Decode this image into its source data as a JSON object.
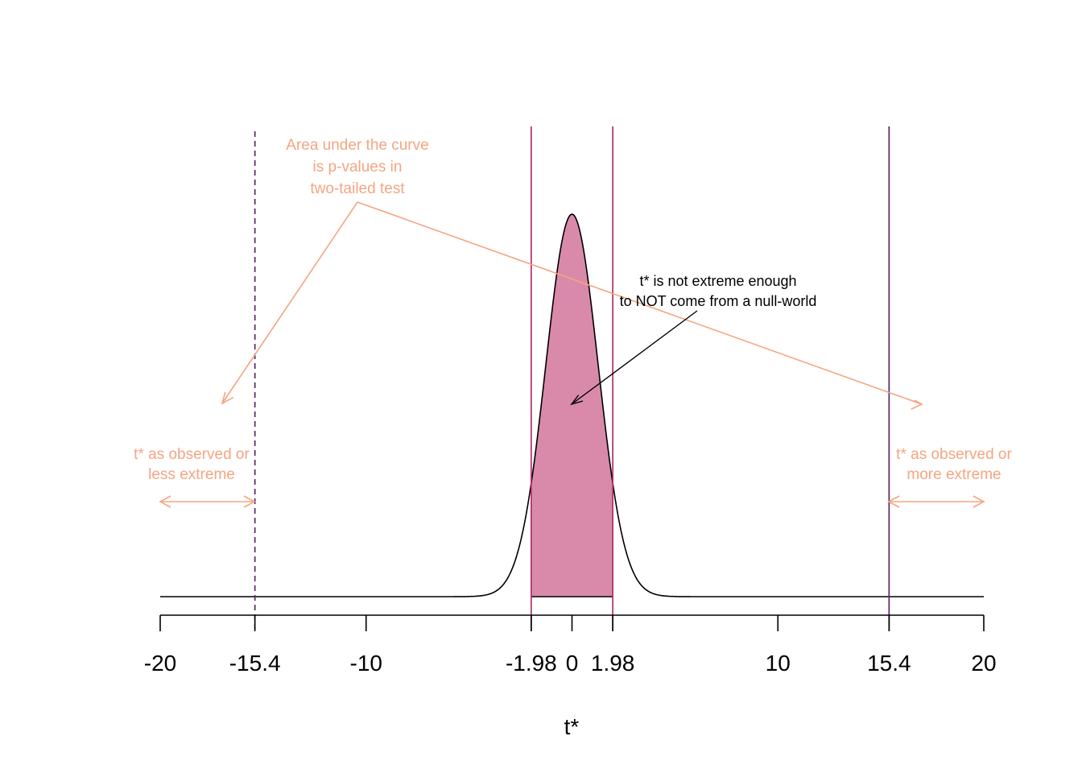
{
  "chart_data": {
    "type": "area",
    "distribution": "t (null world)",
    "xlabel": "t*",
    "ylabel": "",
    "xlim": [
      -20,
      20
    ],
    "x_ticks": [
      -20,
      -15.4,
      -10,
      -1.98,
      0,
      1.98,
      10,
      15.4,
      20
    ],
    "x_tick_labels": [
      "-20",
      "-15.4",
      "-10",
      "-1.98",
      "0",
      "1.98",
      "10",
      "15.4",
      "20"
    ],
    "grid": false,
    "shaded_region": {
      "from": -1.98,
      "to": 1.98,
      "color": "#d98aaa"
    },
    "vertical_lines": [
      {
        "name": "critical-lower",
        "x": -1.98,
        "style": "solid",
        "color": "#b0306a"
      },
      {
        "name": "critical-upper",
        "x": 1.98,
        "style": "solid",
        "color": "#b0306a"
      },
      {
        "name": "observed-lower",
        "x": -15.4,
        "style": "dashed",
        "color": "#5a2566"
      },
      {
        "name": "observed-upper",
        "x": 15.4,
        "style": "solid",
        "color": "#5a2566"
      }
    ],
    "annotations": {
      "p_value_note": [
        "Area under the curve",
        "is p-values in",
        "two-tailed test"
      ],
      "null_world_note": [
        "t* is not extreme enough",
        "to NOT come from a null-world"
      ],
      "left_region": [
        "t* as observed or",
        "less extreme"
      ],
      "right_region": [
        "t* as observed or",
        "more extreme"
      ]
    },
    "colors": {
      "annotation": "#f4a582",
      "curve": "#000000",
      "fill": "#d98aaa",
      "critical_line": "#b0306a",
      "observed_line": "#5a2566"
    }
  }
}
